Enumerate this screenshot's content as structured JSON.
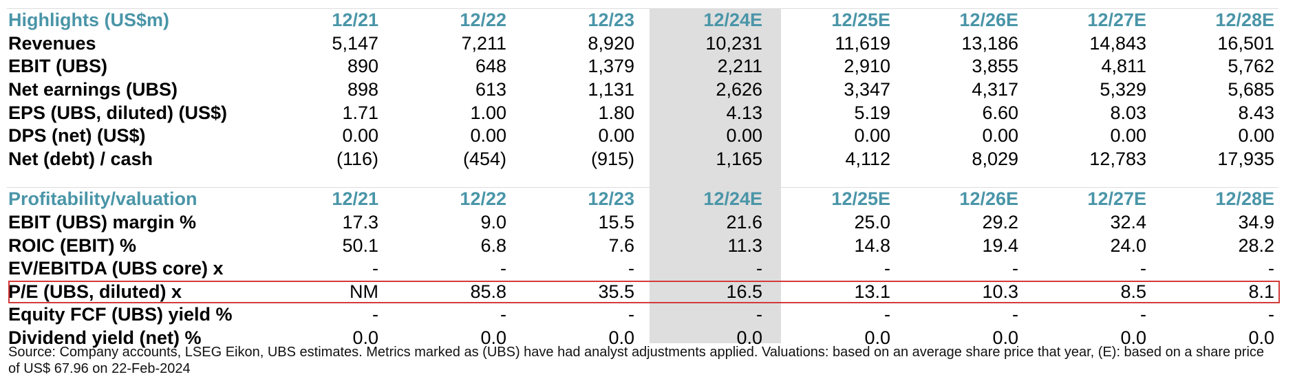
{
  "section1": {
    "title": "Highlights (US$m)",
    "columns": [
      "12/21",
      "12/22",
      "12/23",
      "12/24E",
      "12/25E",
      "12/26E",
      "12/27E",
      "12/28E"
    ],
    "rows": [
      {
        "label": "Revenues",
        "values": [
          "5,147",
          "7,211",
          "8,920",
          "10,231",
          "11,619",
          "13,186",
          "14,843",
          "16,501"
        ]
      },
      {
        "label": "EBIT (UBS)",
        "values": [
          "890",
          "648",
          "1,379",
          "2,211",
          "2,910",
          "3,855",
          "4,811",
          "5,762"
        ]
      },
      {
        "label": "Net earnings (UBS)",
        "values": [
          "898",
          "613",
          "1,131",
          "2,626",
          "3,347",
          "4,317",
          "5,329",
          "5,685"
        ]
      },
      {
        "label": "EPS (UBS, diluted) (US$)",
        "values": [
          "1.71",
          "1.00",
          "1.80",
          "4.13",
          "5.19",
          "6.60",
          "8.03",
          "8.43"
        ]
      },
      {
        "label": "DPS (net) (US$)",
        "values": [
          "0.00",
          "0.00",
          "0.00",
          "0.00",
          "0.00",
          "0.00",
          "0.00",
          "0.00"
        ]
      },
      {
        "label": "Net (debt) / cash",
        "values": [
          "(116)",
          "(454)",
          "(915)",
          "1,165",
          "4,112",
          "8,029",
          "12,783",
          "17,935"
        ]
      }
    ]
  },
  "section2": {
    "title": "Profitability/valuation",
    "columns": [
      "12/21",
      "12/22",
      "12/23",
      "12/24E",
      "12/25E",
      "12/26E",
      "12/27E",
      "12/28E"
    ],
    "rows": [
      {
        "label": "EBIT (UBS) margin %",
        "values": [
          "17.3",
          "9.0",
          "15.5",
          "21.6",
          "25.0",
          "29.2",
          "32.4",
          "34.9"
        ]
      },
      {
        "label": "ROIC (EBIT) %",
        "values": [
          "50.1",
          "6.8",
          "7.6",
          "11.3",
          "14.8",
          "19.4",
          "24.0",
          "28.2"
        ]
      },
      {
        "label": "EV/EBITDA (UBS core) x",
        "values": [
          "-",
          "-",
          "-",
          "-",
          "-",
          "-",
          "-",
          "-"
        ]
      },
      {
        "label": "P/E (UBS, diluted) x",
        "values": [
          "NM",
          "85.8",
          "35.5",
          "16.5",
          "13.1",
          "10.3",
          "8.5",
          "8.1"
        ]
      },
      {
        "label": "Equity FCF (UBS) yield %",
        "values": [
          "-",
          "-",
          "-",
          "-",
          "-",
          "-",
          "-",
          "-"
        ]
      },
      {
        "label": "Dividend yield (net) %",
        "values": [
          "0.0",
          "0.0",
          "0.0",
          "0.0",
          "0.0",
          "0.0",
          "0.0",
          "0.0"
        ]
      }
    ]
  },
  "footer": {
    "source": "Source: Company accounts, LSEG Eikon, UBS estimates. Metrics marked as (UBS) have had analyst adjustments applied. Valuations: based on an average share price that year, (E): based on a share price of US$ 67.96 on 22-Feb-2024"
  },
  "colors": {
    "header_teal": "#4a95a8",
    "highlight_red": "#d33a3a",
    "shade_grey": "#dedede"
  }
}
